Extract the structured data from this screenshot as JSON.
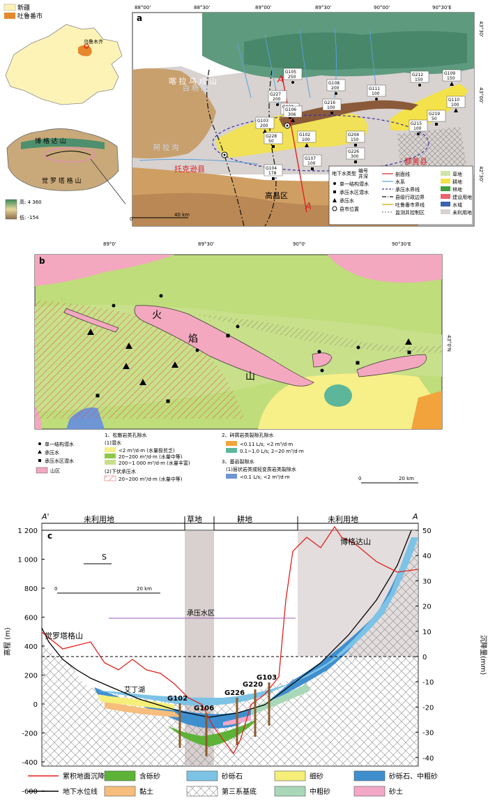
{
  "inset": {
    "legend_xinjiang": "新疆",
    "legend_turpan": "吐鲁番市",
    "urumqi": "乌鲁木齐",
    "bogda": "博 格 达 山",
    "kuruktag": "觉 罗 塔 格 山",
    "elev_high": "高: 4 360",
    "elev_low": "低: -154"
  },
  "panel_a": {
    "letter": "a",
    "lon_ticks": [
      "88°00'",
      "88°30'",
      "89°00'",
      "89°30'",
      "90°00'",
      "90°30'E"
    ],
    "lat_ticks": [
      "43°30'",
      "43°00'",
      "42°30'"
    ],
    "places": {
      "toksun": "托克逊县",
      "shanshan": "鄯善县",
      "gaochang": "高昌区",
      "kalawucheng": "喀 拉 乌 成 山",
      "baiyang": "白 杨 河",
      "ala": "阿 拉 沟",
      "section_a": "A",
      "section_a2": "A'"
    },
    "wells": [
      {
        "id": "G105",
        "depth": "250"
      },
      {
        "id": "G108",
        "depth": "200"
      },
      {
        "id": "G227",
        "depth": "200"
      },
      {
        "id": "G111",
        "depth": "100"
      },
      {
        "id": "G212",
        "depth": "150"
      },
      {
        "id": "G109",
        "depth": "150"
      },
      {
        "id": "G220",
        "depth": "100"
      },
      {
        "id": "G216",
        "depth": "100"
      },
      {
        "id": "G110",
        "depth": "100"
      },
      {
        "id": "G103",
        "depth": "200"
      },
      {
        "id": "G106",
        "depth": "306"
      },
      {
        "id": "G215",
        "depth": "100"
      },
      {
        "id": "G219",
        "depth": "50"
      },
      {
        "id": "G102",
        "depth": "100"
      },
      {
        "id": "G204",
        "depth": "150"
      },
      {
        "id": "G228",
        "depth": "50"
      },
      {
        "id": "G226",
        "depth": "300"
      },
      {
        "id": "G107",
        "depth": "100"
      },
      {
        "id": "G104",
        "depth": "178"
      }
    ],
    "legend": {
      "title": "地下水类型",
      "code": "编号",
      "depth": "井深",
      "items_left": [
        "单一结构潜水",
        "承压水区潜水",
        "承压水",
        "县市位置"
      ],
      "items_mid": [
        "剖面线",
        "水系",
        "承压水界线",
        "县级行政边界",
        "吐鲁番市界线",
        "监测井控制区"
      ],
      "items_right": [
        "草地",
        "耕地",
        "林地",
        "建设用地",
        "水域",
        "未利用地"
      ]
    },
    "scale": [
      "0",
      "40 km"
    ]
  },
  "panel_b": {
    "letter": "b",
    "lon_ticks": [
      "89°0'",
      "89°30'",
      "90°0'",
      "90°30'E"
    ],
    "lat_tick": "43°0'N",
    "mountain": [
      "火",
      "焰",
      "山"
    ],
    "legend": {
      "symbols": [
        "单一结构潜水",
        "承压水",
        "承压水区潜水",
        "山区"
      ],
      "g1_title": "1、松散岩类孔隙水",
      "g1_sub1": "(1)潜水",
      "g1_items": [
        "<2 m³/d·m (水量极贫乏)",
        "20~200 m³/d·m (水量中等)",
        "200~1 000 m³/d·m (水量丰富)"
      ],
      "g1_sub2": "(2)下伏承压水",
      "g1_sub2_item": "20~200 m³/d·m (水量中等)",
      "g2_title": "2、碎屑岩类裂隙孔隙水",
      "g2_items": [
        "<0.11 L/s; <2 m³/d·m",
        "0.1~1.0 L/s; 2~20 m³/d·m"
      ],
      "g3_title": "3、基岩裂隙水",
      "g3_sub": "(1)层状岩类或轻变质岩类裂隙水",
      "g3_item": "<0.1 L/s; <2 m³/d·m"
    },
    "scale": [
      "0",
      "20 km"
    ]
  },
  "panel_c": {
    "letter": "c",
    "end_left": "A'",
    "end_right": "A",
    "landuse": [
      "未利用地",
      "草地",
      "耕地",
      "未利用地"
    ],
    "mountains": {
      "left": "觉罗塔格山",
      "right": "博格达山"
    },
    "lake": "艾丁湖",
    "direction": "S",
    "scale": [
      "0",
      "20 km"
    ],
    "confined_zone": "承压水区",
    "wells": [
      "G102",
      "G106",
      "G226",
      "G220",
      "G103"
    ],
    "ylabel_left": "高程 (m)",
    "ylabel_right": "沉降量(mm)",
    "yticks_left": [
      "1 200",
      "1 000",
      "800",
      "600",
      "400",
      "200",
      "0",
      "-200",
      "-400",
      "-600"
    ],
    "yticks_right": [
      "50",
      "40",
      "30",
      "20",
      "10",
      "0",
      "-10",
      "-20",
      "-30",
      "-40"
    ],
    "legend": [
      {
        "label": "累积地面沉降线",
        "type": "line",
        "color": "#e0201c"
      },
      {
        "label": "含砾砂",
        "type": "fill",
        "color": "#5cb338"
      },
      {
        "label": "砂砾石",
        "type": "fill",
        "color": "#7cc3e6"
      },
      {
        "label": "细砂",
        "type": "fill",
        "color": "#f5ef7a"
      },
      {
        "label": "砂砾石、中粗砂",
        "type": "fill",
        "color": "#3f8fcf"
      },
      {
        "label": "地下水位线",
        "type": "line",
        "color": "#000000"
      },
      {
        "label": "黏土",
        "type": "fill",
        "color": "#f6bd7c"
      },
      {
        "label": "第三系基底",
        "type": "hatch",
        "color": "#ffffff"
      },
      {
        "label": "中粗砂",
        "type": "fill",
        "color": "#a9d8b8"
      },
      {
        "label": "砂土",
        "type": "fill",
        "color": "#f3a8c8"
      }
    ]
  }
}
